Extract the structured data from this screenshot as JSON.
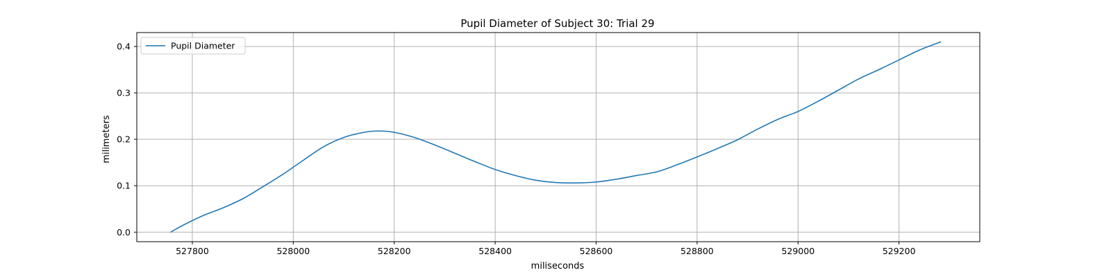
{
  "chart_data": {
    "type": "line",
    "title": "Pupil Diameter of Subject 30: Trial 29",
    "xlabel": "miliseconds",
    "ylabel": "milimeters",
    "xlim": [
      527690,
      529360
    ],
    "ylim": [
      -0.0205,
      0.43
    ],
    "xticks": [
      527800,
      528000,
      528200,
      528400,
      528600,
      528800,
      529000,
      529200
    ],
    "yticks": [
      0.0,
      0.1,
      0.2,
      0.3,
      0.4
    ],
    "xtick_labels": [
      "527800",
      "528000",
      "528200",
      "528400",
      "528600",
      "528800",
      "529000",
      "529200"
    ],
    "ytick_labels": [
      "0.0",
      "0.1",
      "0.2",
      "0.3",
      "0.4"
    ],
    "grid": true,
    "legend_position": "upper-left",
    "series": [
      {
        "name": "Pupil Diameter",
        "color": "#1f77b4",
        "x": [
          527757,
          527780,
          527820,
          527860,
          527900,
          527940,
          527980,
          528020,
          528060,
          528100,
          528140,
          528170,
          528200,
          528240,
          528280,
          528320,
          528360,
          528400,
          528440,
          528480,
          528520,
          528560,
          528600,
          528640,
          528680,
          528720,
          528760,
          528800,
          528840,
          528880,
          528920,
          528960,
          529000,
          529040,
          529080,
          529120,
          529160,
          529200,
          529240,
          529283
        ],
        "y": [
          0.0,
          0.014,
          0.035,
          0.052,
          0.072,
          0.098,
          0.125,
          0.155,
          0.184,
          0.204,
          0.215,
          0.218,
          0.215,
          0.204,
          0.188,
          0.17,
          0.152,
          0.135,
          0.122,
          0.112,
          0.107,
          0.106,
          0.108,
          0.114,
          0.122,
          0.13,
          0.145,
          0.162,
          0.18,
          0.199,
          0.222,
          0.243,
          0.26,
          0.282,
          0.306,
          0.33,
          0.35,
          0.371,
          0.392,
          0.41
        ]
      }
    ]
  }
}
